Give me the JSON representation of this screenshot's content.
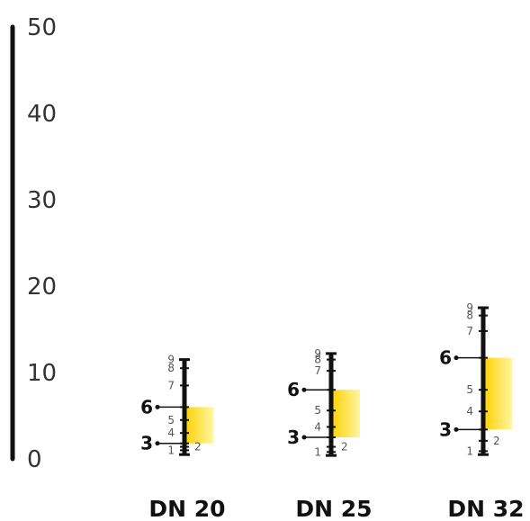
{
  "chart_data": {
    "type": "bar",
    "y_axis": {
      "ticks": [
        "0",
        "10",
        "20",
        "30",
        "40",
        "50"
      ],
      "ylim": [
        0,
        50
      ]
    },
    "colors": {
      "bar_top": "#ffd000",
      "bar_bottom": "#fff6a0",
      "line": "#111111"
    },
    "instruments": [
      {
        "category": "DN 20",
        "scale_min": 0.5,
        "scale_max": 11.5,
        "ticks": [
          {
            "label": "1",
            "value": 1.0
          },
          {
            "label": "2",
            "value": 1.4
          },
          {
            "label": "3",
            "value": 1.8
          },
          {
            "label": "4",
            "value": 3.0
          },
          {
            "label": "5",
            "value": 4.5
          },
          {
            "label": "6",
            "value": 6.0
          },
          {
            "label": "7",
            "value": 8.5
          },
          {
            "label": "8",
            "value": 10.5
          },
          {
            "label": "9",
            "value": 11.5
          }
        ],
        "range": {
          "low_label": "3",
          "low": 1.8,
          "high_label": "6",
          "high": 6.0
        }
      },
      {
        "category": "DN 25",
        "scale_min": 0.4,
        "scale_max": 12.2,
        "ticks": [
          {
            "label": "1",
            "value": 0.8
          },
          {
            "label": "2",
            "value": 1.4
          },
          {
            "label": "3",
            "value": 2.5
          },
          {
            "label": "4",
            "value": 3.7
          },
          {
            "label": "5",
            "value": 5.6
          },
          {
            "label": "6",
            "value": 8.0
          },
          {
            "label": "7",
            "value": 10.2
          },
          {
            "label": "8",
            "value": 11.5
          },
          {
            "label": "9",
            "value": 12.2
          }
        ],
        "range": {
          "low_label": "3",
          "low": 2.5,
          "high_label": "6",
          "high": 8.0
        }
      },
      {
        "category": "DN 32",
        "scale_min": 0.5,
        "scale_max": 17.5,
        "ticks": [
          {
            "label": "1",
            "value": 0.9
          },
          {
            "label": "2",
            "value": 2.1
          },
          {
            "label": "3",
            "value": 3.4
          },
          {
            "label": "4",
            "value": 5.5
          },
          {
            "label": "5",
            "value": 8.0
          },
          {
            "label": "6",
            "value": 11.7
          },
          {
            "label": "7",
            "value": 14.8
          },
          {
            "label": "8",
            "value": 16.6
          },
          {
            "label": "9",
            "value": 17.5
          }
        ],
        "range": {
          "low_label": "3",
          "low": 3.4,
          "high_label": "6",
          "high": 11.7
        }
      }
    ]
  }
}
